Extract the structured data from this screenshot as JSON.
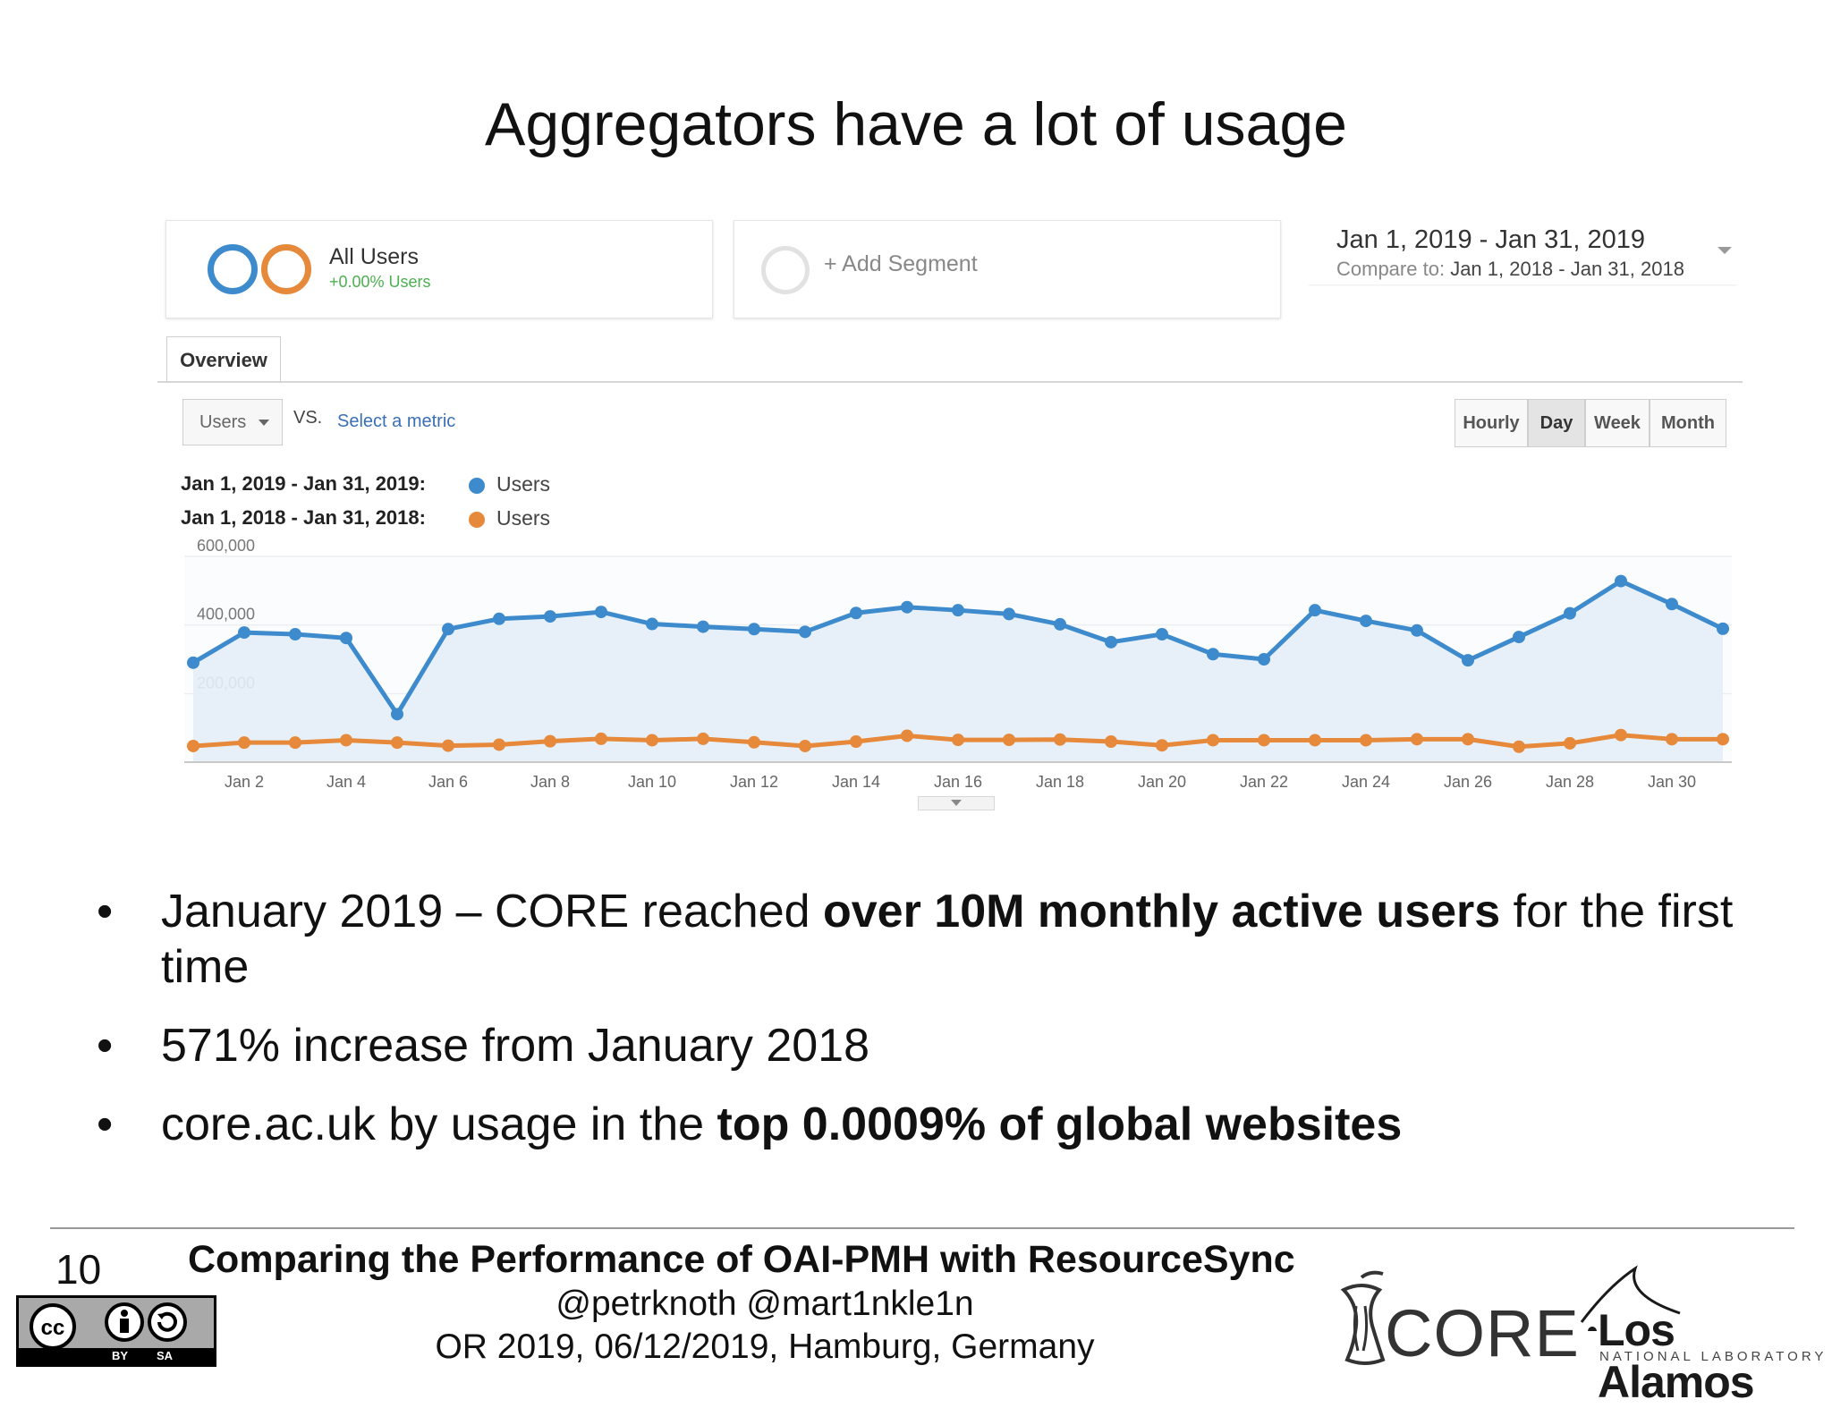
{
  "slide": {
    "title": "Aggregators have a lot of usage"
  },
  "analytics": {
    "segments": [
      {
        "name": "All Users",
        "subtitle": "+0.00% Users"
      },
      {
        "name": "+ Add Segment"
      }
    ],
    "date_range": {
      "main": "Jan 1, 2019 - Jan 31, 2019",
      "compare_label": "Compare to:",
      "compare_range": "Jan 1, 2018 - Jan 31, 2018"
    },
    "tab": "Overview",
    "metric": "Users",
    "vs": "VS.",
    "select_metric": "Select a metric",
    "granularity": [
      {
        "label": "Hourly",
        "active": false
      },
      {
        "label": "Day",
        "active": true
      },
      {
        "label": "Week",
        "active": false
      },
      {
        "label": "Month",
        "active": false
      }
    ],
    "legend": [
      {
        "period": "Jan 1, 2019 - Jan 31, 2019:",
        "series": "Users",
        "color": "#3d8bcc"
      },
      {
        "period": "Jan 1, 2018 - Jan 31, 2018:",
        "series": "Users",
        "color": "#e6893a"
      }
    ]
  },
  "chart_data": {
    "type": "line",
    "title": "",
    "x": [
      1,
      2,
      3,
      4,
      5,
      6,
      7,
      8,
      9,
      10,
      11,
      12,
      13,
      14,
      15,
      16,
      17,
      18,
      19,
      20,
      21,
      22,
      23,
      24,
      25,
      26,
      27,
      28,
      29,
      30,
      31
    ],
    "x_tick_labels": [
      "Jan 2",
      "Jan 4",
      "Jan 6",
      "Jan 8",
      "Jan 10",
      "Jan 12",
      "Jan 14",
      "Jan 16",
      "Jan 18",
      "Jan 20",
      "Jan 22",
      "Jan 24",
      "Jan 26",
      "Jan 28",
      "Jan 30"
    ],
    "x_tick_positions": [
      2,
      4,
      6,
      8,
      10,
      12,
      14,
      16,
      18,
      20,
      22,
      24,
      26,
      28,
      30
    ],
    "y_tick_labels": [
      "600,000",
      "400,000",
      "200,000"
    ],
    "y_tick_values": [
      600000,
      400000,
      200000
    ],
    "ylim": [
      0,
      600000
    ],
    "grid": true,
    "series": [
      {
        "name": "Users",
        "color": "#3d8bcc",
        "values": [
          290000,
          378000,
          373000,
          362000,
          140000,
          388000,
          418000,
          425000,
          438000,
          403000,
          395000,
          388000,
          380000,
          435000,
          452000,
          443000,
          432000,
          402000,
          350000,
          373000,
          315000,
          300000,
          443000,
          412000,
          384000,
          297000,
          365000,
          434000,
          528000,
          461000,
          389000
        ]
      },
      {
        "name": "Users",
        "color": "#e6893a",
        "values": [
          47000,
          57000,
          57000,
          64000,
          57000,
          48000,
          51000,
          61000,
          68000,
          64000,
          68000,
          58000,
          47000,
          60000,
          77000,
          65000,
          65000,
          66000,
          60000,
          49000,
          64000,
          64000,
          64000,
          64000,
          67000,
          67000,
          45000,
          55000,
          79000,
          67000,
          67000
        ]
      }
    ]
  },
  "bullets": [
    {
      "parts": [
        {
          "text": "January 2019 – CORE reached ",
          "bold": false
        },
        {
          "text": "over 10M monthly active users",
          "bold": true
        },
        {
          "text": " for the first time",
          "bold": false
        }
      ]
    },
    {
      "parts": [
        {
          "text": "571% increase from January 2018",
          "bold": false
        }
      ]
    },
    {
      "parts": [
        {
          "text": "core.ac.uk by usage in the ",
          "bold": false
        },
        {
          "text": "top 0.0009% of global websites",
          "bold": true
        }
      ]
    }
  ],
  "footer": {
    "page_number": "10",
    "title": "Comparing the Performance of OAI-PMH with ResourceSync",
    "handles": "@petrknoth @mart1nkle1n",
    "venue": "OR 2019, 06/12/2019, Hamburg, Germany",
    "license_labels": [
      "BY",
      "SA"
    ],
    "logos": {
      "core": "CORE",
      "lanl": "Los Alamos",
      "lanl_sub": "NATIONAL LABORATORY"
    }
  }
}
